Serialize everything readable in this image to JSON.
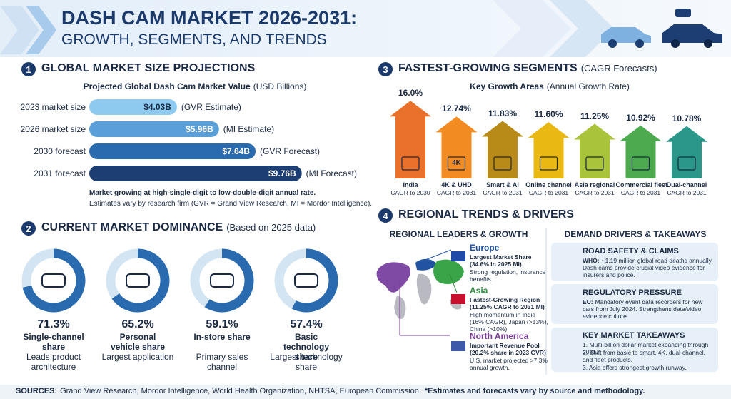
{
  "header": {
    "title": "DASH CAM MARKET 2026-2031:",
    "subtitle": "GROWTH, SEGMENTS, AND TRENDS"
  },
  "sections": [
    {
      "number": "1",
      "title": "GLOBAL MARKET SIZE PROJECTIONS"
    },
    {
      "number": "2",
      "title": "CURRENT MARKET DOMINANCE",
      "note": "(Based on 2025 data)"
    },
    {
      "number": "3",
      "title": "FASTEST-GROWING SEGMENTS",
      "note": "(CAGR Forecasts)"
    },
    {
      "number": "4",
      "title": "REGIONAL TRENDS & DRIVERS"
    }
  ],
  "chart_data": [
    {
      "type": "hbar",
      "title": "Projected Global Dash Cam Market Value",
      "unit": "(USD Billions)",
      "categories": [
        "2023 market size",
        "2026 market size",
        "2030 forecast",
        "2031 forecast"
      ],
      "values": [
        4.03,
        5.96,
        7.64,
        9.76
      ],
      "value_labels": [
        "$4.03B",
        "$5.96B",
        "$7.64B",
        "$9.76B"
      ],
      "sources": [
        "(GVR Estimate)",
        "(MI Estimate)",
        "(GVR Forecast)",
        "(MI Forecast)"
      ],
      "colors": [
        "#8ec9ef",
        "#5a9fd8",
        "#2a6aae",
        "#1c3e72"
      ],
      "notes": [
        "Market growing at high-single-digit to low-double-digit annual rate.",
        "Estimates vary by research firm (GVR = Grand View Research, MI = Mordor Intelligence)."
      ]
    },
    {
      "type": "arrow",
      "title": "Key Growth Areas",
      "unit": "(Annual Growth Rate)",
      "categories": [
        "India",
        "4K & UHD",
        "Smart & AI",
        "Online channel",
        "Asia regional",
        "Commercial fleet",
        "Dual-channel"
      ],
      "sublabels": [
        "CAGR to 2030",
        "CAGR to 2031",
        "CAGR to 2031",
        "CAGR to 2031",
        "CAGR to 2031",
        "CAGR to 2031",
        "CAGR to 2031"
      ],
      "values": [
        16.0,
        12.74,
        11.83,
        11.6,
        11.25,
        10.92,
        10.78
      ],
      "value_labels": [
        "16.0%",
        "12.74%",
        "11.83%",
        "11.60%",
        "11.25%",
        "10.92%",
        "10.78%"
      ],
      "colors": [
        "#e9712b",
        "#f18b22",
        "#b88a18",
        "#e9b812",
        "#a9c33a",
        "#4daa4f",
        "#2a978a"
      ],
      "badge": "4K"
    },
    {
      "type": "donut",
      "categories": [
        "Single-channel share",
        "Personal vehicle share",
        "In-store share",
        "Basic technology share"
      ],
      "values": [
        71.3,
        65.2,
        59.1,
        57.4
      ],
      "value_labels": [
        "71.3%",
        "65.2%",
        "59.1%",
        "57.4%"
      ],
      "descriptions": [
        "Leads product architecture",
        "Largest application",
        "Primary sales channel",
        "Largest technology share"
      ],
      "color": "#2a6aae",
      "track_color": "#d3e4f2"
    }
  ],
  "regional": {
    "title": "REGIONAL LEADERS & GROWTH",
    "regions": [
      {
        "name": "Europe",
        "headline": "Largest Market Share (34.6% in 2025 MI)",
        "detail": "Strong regulation, insurance benefits.",
        "color": "#1d4e9e"
      },
      {
        "name": "Asia",
        "headline": "Fastest-Growing Region (11.25% CAGR to 2031 MI)",
        "detail": "High momentum in India (16% CAGR), Japan (>13%), China (>10%).",
        "color": "#2e8b3e"
      },
      {
        "name": "North America",
        "headline": "Important Revenue Pool (20.2% share in 2023 GVR)",
        "detail": "U.S. market projected >7.3% annual growth.",
        "color": "#7b3f98"
      }
    ]
  },
  "drivers": {
    "title": "DEMAND DRIVERS & TAKEAWAYS",
    "items": [
      {
        "title": "ROAD SAFETY & CLAIMS",
        "lead": "WHO:",
        "text": "~1.19 million global road deaths annually. Dash cams provide crucial video evidence for insurers and police."
      },
      {
        "title": "REGULATORY PRESSURE",
        "lead": "EU:",
        "text": "Mandatory event data recorders for new cars from July 2024. Strengthens data/video evidence culture."
      }
    ],
    "takeaways": {
      "title": "KEY MARKET TAKEAWAYS",
      "items": [
        "1. Multi-billion dollar market expanding through 2031.",
        "2. Shift from basic to smart, 4K, dual-channel, and fleet products.",
        "3. Asia offers strongest growth runway."
      ]
    }
  },
  "footer": {
    "lead": "SOURCES:",
    "text": "Grand View Research, Mordor Intelligence, World Health Organization, NHTSA, European Commission.",
    "note": "*Estimates and forecasts vary by source and methodology."
  }
}
